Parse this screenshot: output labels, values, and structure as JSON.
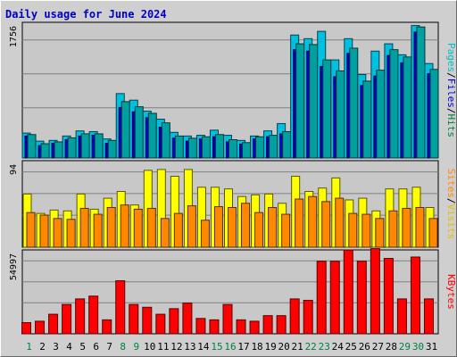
{
  "title": "Daily usage for June 2024",
  "colors": {
    "background": "#cfcfcf",
    "plot_bg": "#c8c8c8",
    "title": "#0000c0",
    "hits": "#00c0e0",
    "files": "#0000cc",
    "pages": "#00a0a0",
    "visits": "#ffff00",
    "sites": "#ff8800",
    "kbytes": "#ff0000",
    "axis_weekday": "#000000",
    "axis_weekend": "#008040"
  },
  "chart_data": [
    {
      "type": "bar",
      "panel": "hits-files-pages",
      "ymax_label": "1756",
      "ymax": 1756,
      "right_label": [
        "Pages",
        "/",
        "Files",
        "/",
        "Hits"
      ],
      "right_label_colors": [
        "#00c0c0",
        "#000000",
        "#0000cc",
        "#000000",
        "#008040"
      ],
      "categories": [
        "1",
        "2",
        "3",
        "4",
        "5",
        "6",
        "7",
        "8",
        "9",
        "10",
        "11",
        "12",
        "13",
        "14",
        "15",
        "16",
        "17",
        "18",
        "19",
        "20",
        "21",
        "22",
        "23",
        "24",
        "25",
        "26",
        "27",
        "28",
        "29",
        "30",
        "31"
      ],
      "series": [
        {
          "name": "Hits",
          "values": [
            320,
            195,
            220,
            275,
            330,
            330,
            240,
            770,
            700,
            610,
            480,
            300,
            270,
            290,
            320,
            250,
            210,
            290,
            310,
            360,
            1560,
            1550,
            1340,
            1190,
            1500,
            1050,
            1200,
            1480,
            1380,
            1790,
            1210
          ]
        },
        {
          "name": "Files",
          "values": [
            300,
            170,
            200,
            250,
            300,
            310,
            200,
            690,
            630,
            550,
            420,
            270,
            230,
            260,
            290,
            220,
            190,
            260,
            290,
            330,
            1480,
            1460,
            1250,
            1110,
            1430,
            990,
            1120,
            1400,
            1300,
            1720,
            1150
          ]
        },
        {
          "name": "Pages",
          "values": [
            340,
            230,
            240,
            300,
            370,
            360,
            260,
            880,
            790,
            640,
            530,
            350,
            300,
            310,
            380,
            310,
            240,
            300,
            370,
            470,
            1680,
            1630,
            1730,
            1340,
            1630,
            1140,
            1460,
            1560,
            1410,
            1810,
            1290
          ]
        }
      ]
    },
    {
      "type": "bar",
      "panel": "visits-sites",
      "ymax_label": "94",
      "ymax": 94,
      "right_label": [
        "Sites",
        "/",
        "Visits"
      ],
      "right_label_colors": [
        "#ff8800",
        "#000000",
        "#e0c000"
      ],
      "categories": [
        "1",
        "2",
        "3",
        "4",
        "5",
        "6",
        "7",
        "8",
        "9",
        "10",
        "11",
        "12",
        "13",
        "14",
        "15",
        "16",
        "17",
        "18",
        "19",
        "20",
        "21",
        "22",
        "23",
        "24",
        "25",
        "26",
        "27",
        "28",
        "29",
        "30",
        "31"
      ],
      "series": [
        {
          "name": "Visits",
          "values": [
            63,
            40,
            44,
            43,
            63,
            45,
            58,
            66,
            50,
            91,
            92,
            84,
            92,
            71,
            71,
            69,
            60,
            62,
            63,
            52,
            84,
            66,
            70,
            82,
            56,
            58,
            43,
            69,
            69,
            71,
            47
          ]
        },
        {
          "name": "Sites",
          "values": [
            41,
            38,
            34,
            33,
            46,
            39,
            47,
            50,
            45,
            46,
            34,
            40,
            49,
            32,
            48,
            47,
            52,
            41,
            47,
            39,
            57,
            60,
            54,
            58,
            40,
            39,
            34,
            43,
            46,
            47,
            34
          ]
        }
      ]
    },
    {
      "type": "bar",
      "panel": "kbytes",
      "ymax_label": "54997",
      "ymax": 54997,
      "right_label": [
        "KBytes"
      ],
      "right_label_colors": [
        "#ff0000"
      ],
      "categories": [
        "1",
        "2",
        "3",
        "4",
        "5",
        "6",
        "7",
        "8",
        "9",
        "10",
        "11",
        "12",
        "13",
        "14",
        "15",
        "16",
        "17",
        "18",
        "19",
        "20",
        "21",
        "22",
        "23",
        "24",
        "25",
        "26",
        "27",
        "28",
        "29",
        "30",
        "31"
      ],
      "series": [
        {
          "name": "KBytes",
          "values": [
            8000,
            9000,
            14000,
            21000,
            25000,
            27000,
            10000,
            38000,
            21000,
            19000,
            14000,
            18000,
            22000,
            11000,
            10000,
            21000,
            10000,
            9000,
            13000,
            13000,
            25000,
            24000,
            52000,
            52000,
            60000,
            52000,
            61000,
            54000,
            25000,
            55000,
            25000
          ]
        }
      ]
    }
  ],
  "x_axis": {
    "labels": [
      "1",
      "2",
      "3",
      "4",
      "5",
      "6",
      "7",
      "8",
      "9",
      "10",
      "11",
      "12",
      "13",
      "14",
      "15",
      "16",
      "17",
      "18",
      "19",
      "20",
      "21",
      "22",
      "23",
      "24",
      "25",
      "26",
      "27",
      "28",
      "29",
      "30",
      "31"
    ],
    "weekend": [
      "1",
      "8",
      "9",
      "15",
      "16",
      "22",
      "23",
      "29",
      "30"
    ]
  }
}
